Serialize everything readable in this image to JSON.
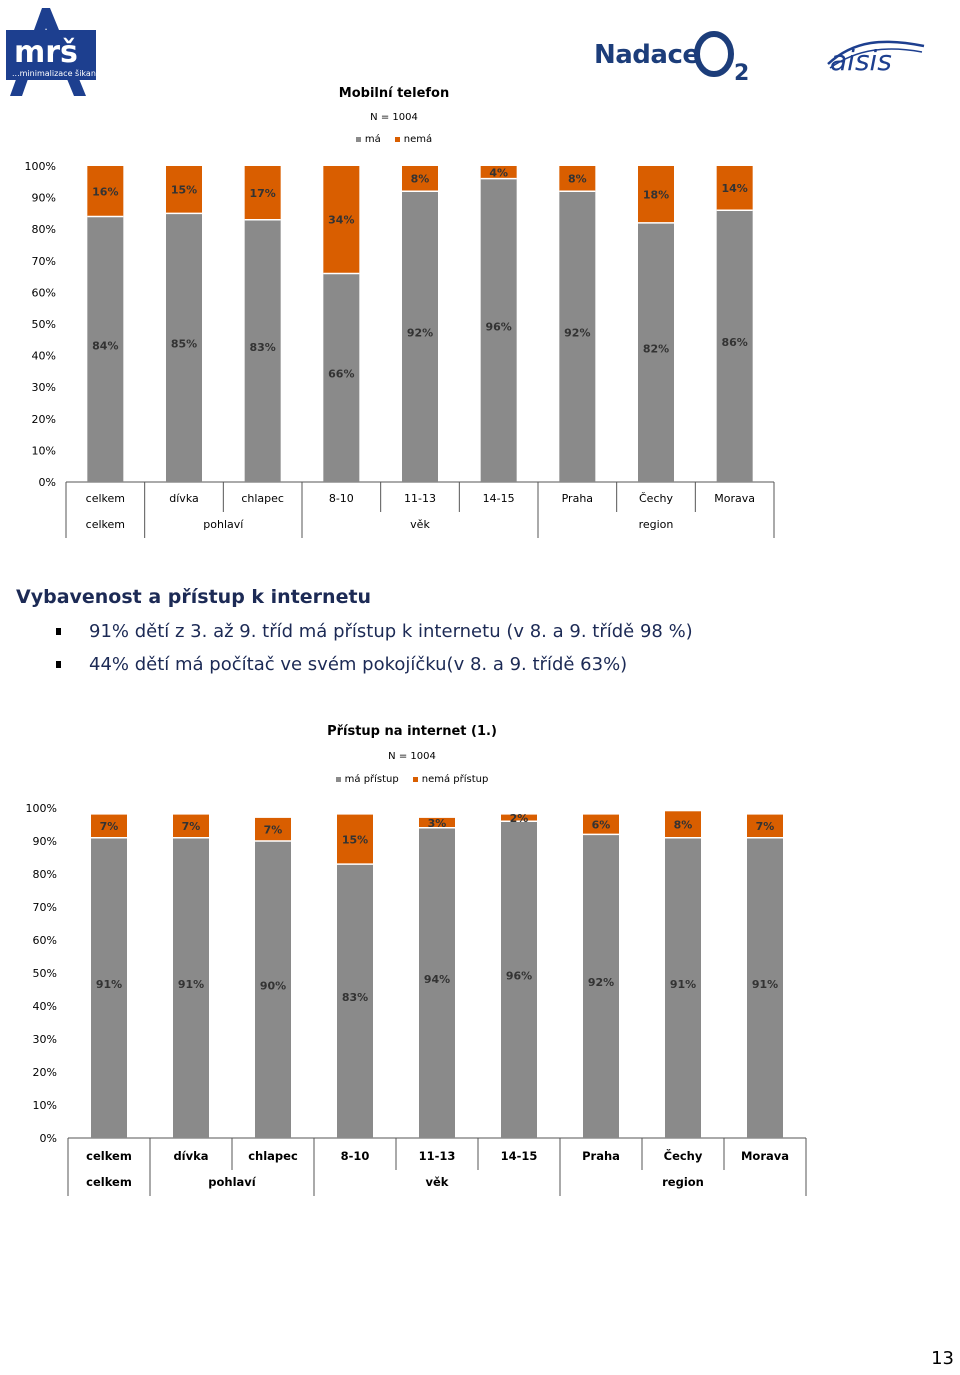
{
  "logos": {
    "mrs": {
      "text": "mrš",
      "tagline": "...minimalizace šikany"
    },
    "o2": {
      "text": "Nadace",
      "mark": "O",
      "sub": "2"
    },
    "aisis": {
      "text": "aisis"
    }
  },
  "colors": {
    "ma": "#8a8a8a",
    "nema": "#d95e00",
    "heading": "#1c2a55"
  },
  "chart1": {
    "title": "Mobilní telefon",
    "n_label": "N = 1004",
    "legend": [
      "má",
      "nemá"
    ]
  },
  "chart2": {
    "title": "Přístup na internet (1.)",
    "n_label": "N = 1004",
    "legend": [
      "má přístup",
      "nemá přístup"
    ]
  },
  "section": {
    "heading": "Vybavenost a přístup k internetu",
    "bullets": [
      "91% dětí z 3. až 9. tříd má přístup k internetu (v 8. a 9. třídě 98 %)",
      "44% dětí má počítač ve svém pokojíčku(v 8. a 9. třídě 63%)"
    ]
  },
  "page_number": "13",
  "chart_data": [
    {
      "type": "bar",
      "stacked": true,
      "title": "Mobilní telefon",
      "subtitle": "N = 1004",
      "categories": [
        "celkem",
        "dívka",
        "chlapec",
        "8-10",
        "11-13",
        "14-15",
        "Praha",
        "Čechy",
        "Morava"
      ],
      "groups": [
        {
          "label": "celkem",
          "span": 1
        },
        {
          "label": "pohlaví",
          "span": 2
        },
        {
          "label": "věk",
          "span": 3
        },
        {
          "label": "region",
          "span": 3
        }
      ],
      "series": [
        {
          "name": "má",
          "color": "#8a8a8a",
          "values": [
            84,
            85,
            83,
            66,
            92,
            96,
            92,
            82,
            86
          ]
        },
        {
          "name": "nemá",
          "color": "#d95e00",
          "values": [
            16,
            15,
            17,
            34,
            8,
            4,
            8,
            18,
            14
          ]
        }
      ],
      "yticks": [
        "0%",
        "10%",
        "20%",
        "30%",
        "40%",
        "50%",
        "60%",
        "70%",
        "80%",
        "90%",
        "100%"
      ],
      "ylim": [
        0,
        100
      ],
      "legend_position": "top"
    },
    {
      "type": "bar",
      "stacked": true,
      "title": "Přístup na internet (1.)",
      "subtitle": "N = 1004",
      "categories": [
        "celkem",
        "dívka",
        "chlapec",
        "8-10",
        "11-13",
        "14-15",
        "Praha",
        "Čechy",
        "Morava"
      ],
      "groups": [
        {
          "label": "celkem",
          "span": 1
        },
        {
          "label": "pohlaví",
          "span": 2
        },
        {
          "label": "věk",
          "span": 3
        },
        {
          "label": "region",
          "span": 3
        }
      ],
      "series": [
        {
          "name": "má přístup",
          "color": "#8a8a8a",
          "values": [
            91,
            91,
            90,
            83,
            94,
            96,
            92,
            91,
            91
          ]
        },
        {
          "name": "nemá přístup",
          "color": "#d95e00",
          "values": [
            7,
            7,
            7,
            15,
            3,
            2,
            6,
            8,
            7
          ]
        }
      ],
      "yticks": [
        "0%",
        "10%",
        "20%",
        "30%",
        "40%",
        "50%",
        "60%",
        "70%",
        "80%",
        "90%",
        "100%"
      ],
      "ylim": [
        0,
        100
      ],
      "legend_position": "top"
    }
  ]
}
